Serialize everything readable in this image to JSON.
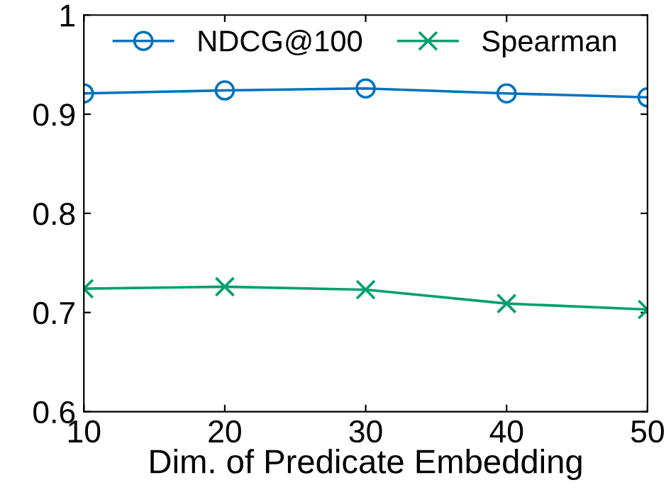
{
  "chart_data": {
    "type": "line",
    "xlabel": "Dim. of Predicate Embedding",
    "x": [
      10,
      20,
      30,
      40,
      50
    ],
    "series": [
      {
        "name": "NDCG@100",
        "color": "#0072bd",
        "marker": "circle",
        "values": [
          0.921,
          0.924,
          0.926,
          0.921,
          0.917
        ]
      },
      {
        "name": "Spearman",
        "color": "#00a06e",
        "marker": "cross",
        "values": [
          0.724,
          0.726,
          0.723,
          0.709,
          0.703
        ]
      }
    ],
    "xlim": [
      10,
      50
    ],
    "xticks": [
      10,
      20,
      30,
      40,
      50
    ],
    "ylim": [
      0.6,
      1.0
    ],
    "yticks": [
      0.6,
      0.7,
      0.8,
      0.9,
      {
        "value": 1.0,
        "label": "1"
      }
    ],
    "grid": false,
    "legend": "top",
    "line_style": "solid"
  }
}
